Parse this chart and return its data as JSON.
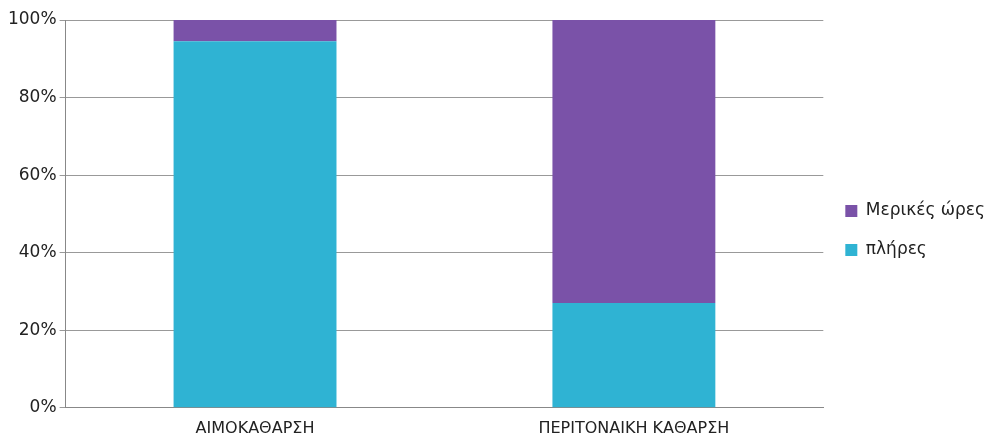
{
  "chart_data": {
    "type": "bar",
    "stacked": true,
    "categories": [
      "ΑΙΜΟΚΑΘΑΡΣΗ",
      "ΠΕΡΙΤΟΝΑΙΚΗ ΚΑΘΑΡΣΗ"
    ],
    "series": [
      {
        "name": "πλήρες",
        "color": "#2fb3d3",
        "values": [
          94.5,
          27
        ]
      },
      {
        "name": "Μερικές ώρες",
        "color": "#7a52a8",
        "values": [
          5.5,
          73
        ]
      }
    ],
    "ylim": [
      0,
      100
    ],
    "yticks": [
      {
        "value": 0,
        "label": "0%"
      },
      {
        "value": 20,
        "label": "20%"
      },
      {
        "value": 40,
        "label": "40%"
      },
      {
        "value": 60,
        "label": "60%"
      },
      {
        "value": 80,
        "label": "80%"
      },
      {
        "value": 100,
        "label": "100%"
      }
    ],
    "grid": "y",
    "legend": "right"
  }
}
